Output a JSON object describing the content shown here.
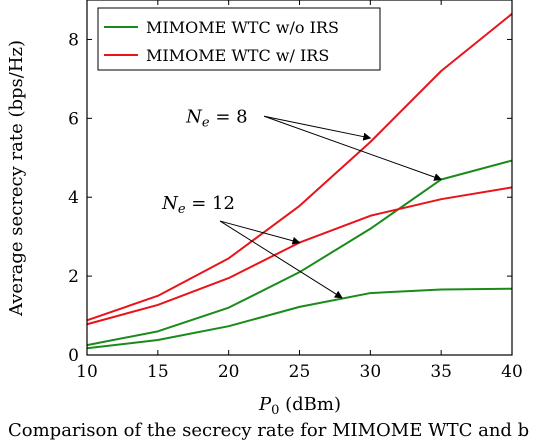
{
  "chart_data": {
    "type": "line",
    "xlabel": "P",
    "xlabel_sub": "0",
    "xlabel_unit": " (dBm)",
    "ylabel": "Average secrecy rate (bps/Hz)",
    "xlim": [
      10,
      40
    ],
    "ylim": [
      0,
      9
    ],
    "xticks": [
      10,
      15,
      20,
      25,
      30,
      35,
      40
    ],
    "yticks": [
      0,
      2,
      4,
      6,
      8
    ],
    "grid": false,
    "legend_position": "top-left",
    "series": [
      {
        "name": "MIMOME WTC w/o IRS",
        "group": "Ne=8",
        "color": "#1a8a1a",
        "x": [
          10,
          15,
          20,
          25,
          30,
          35,
          40
        ],
        "y": [
          0.25,
          0.6,
          1.2,
          2.1,
          3.2,
          4.45,
          4.93
        ]
      },
      {
        "name": "MIMOME WTC w/ IRS",
        "group": "Ne=8",
        "color": "#e8141a",
        "x": [
          10,
          15,
          20,
          25,
          30,
          35,
          40
        ],
        "y": [
          0.88,
          1.5,
          2.45,
          3.78,
          5.4,
          7.2,
          8.65
        ]
      },
      {
        "name": "MIMOME WTC w/o IRS",
        "group": "Ne=12",
        "color": "#1a8a1a",
        "x": [
          10,
          15,
          20,
          25,
          30,
          35,
          40
        ],
        "y": [
          0.17,
          0.38,
          0.73,
          1.22,
          1.57,
          1.66,
          1.68
        ]
      },
      {
        "name": "MIMOME WTC w/ IRS",
        "group": "Ne=12",
        "color": "#e8141a",
        "x": [
          10,
          15,
          20,
          25,
          30,
          35,
          40
        ],
        "y": [
          0.78,
          1.27,
          1.95,
          2.85,
          3.53,
          3.95,
          4.25
        ]
      }
    ],
    "legend": [
      {
        "label": "MIMOME WTC w/o IRS",
        "color": "#1a8a1a"
      },
      {
        "label": "MIMOME WTC w/ IRS",
        "color": "#e8141a"
      }
    ],
    "annotations": [
      {
        "var": "N",
        "sub": "e",
        "rest": " = 8",
        "x": 17.0,
        "y": 5.9,
        "arrows": [
          [
            30.0,
            5.5
          ],
          [
            35.0,
            4.45
          ]
        ]
      },
      {
        "var": "N",
        "sub": "e",
        "rest": " = 12",
        "x": 15.3,
        "y": 3.7,
        "arrows": [
          [
            25.0,
            2.85
          ],
          [
            28.0,
            1.45
          ]
        ]
      }
    ]
  },
  "caption": "Comparison of the secrecy rate for MIMOME WTC and b"
}
